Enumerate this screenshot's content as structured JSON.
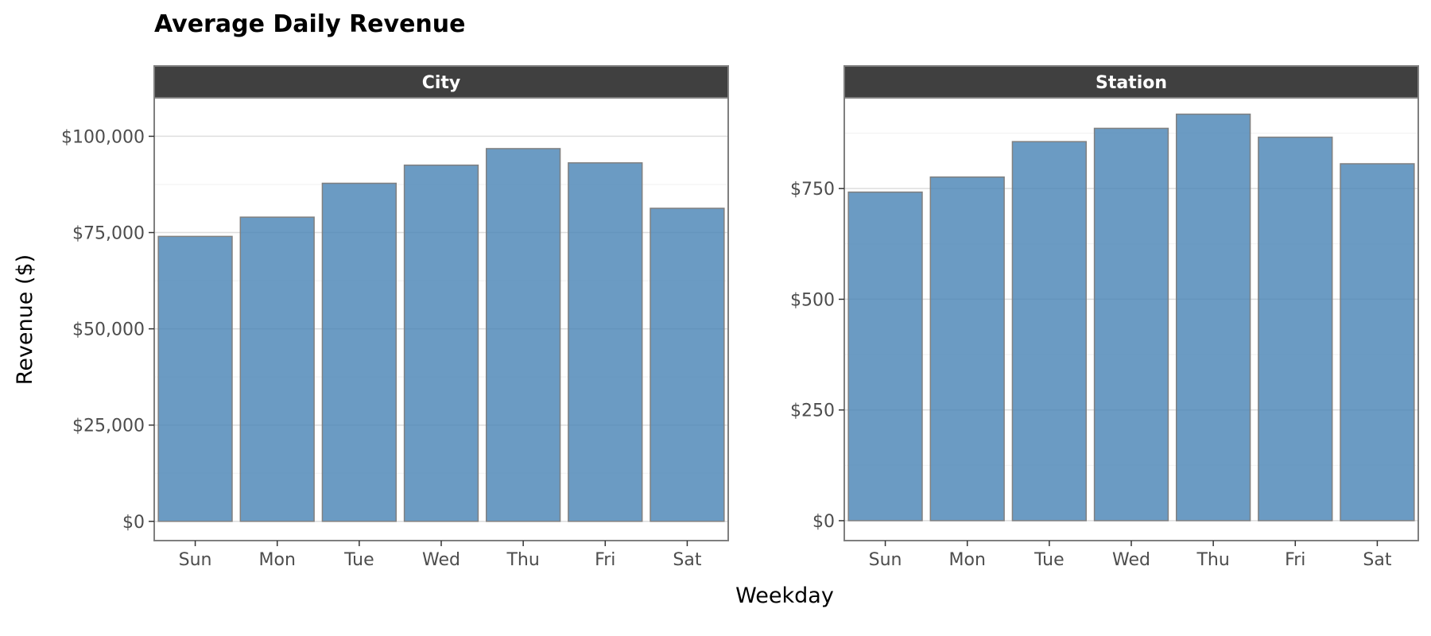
{
  "chart_data": {
    "type": "bar",
    "title": "Average Daily Revenue",
    "xlabel": "Weekday",
    "ylabel": "Revenue ($)",
    "categories": [
      "Sun",
      "Mon",
      "Tue",
      "Wed",
      "Thu",
      "Fri",
      "Sat"
    ],
    "bar_color": "#4682b4",
    "bar_opacity": 0.8,
    "bar_stroke": "#808080",
    "strip_color": "#404040",
    "grid": true,
    "panels": [
      {
        "name": "City",
        "ylim": [
          -5000,
          110000
        ],
        "ticks": [
          0,
          25000,
          50000,
          75000,
          100000
        ],
        "tick_labels": [
          "$0",
          "$25,000",
          "$50,000",
          "$75,000",
          "$100,000"
        ],
        "values": [
          74000,
          79000,
          87800,
          92500,
          96800,
          93100,
          81300
        ]
      },
      {
        "name": "Station",
        "ylim": [
          -45,
          955
        ],
        "ticks": [
          0,
          250,
          500,
          750
        ],
        "tick_labels": [
          "$0",
          "$250",
          "$500",
          "$750"
        ],
        "values": [
          742,
          776,
          856,
          886,
          918,
          866,
          806
        ]
      }
    ]
  }
}
